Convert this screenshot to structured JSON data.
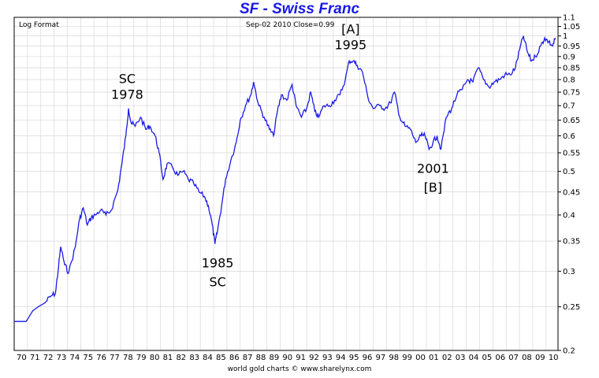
{
  "chart_data": {
    "type": "line",
    "title": "SF  -  Swiss Franc",
    "corner_label": "Log Format",
    "info_label": "Sep-02 2010  Close=0.99",
    "footer": "world gold charts © www.sharelynx.com",
    "scale": "log",
    "grid": true,
    "colors": {
      "line": "#1a1ae6",
      "title": "#1a1ae6",
      "grid": "#d8d8d8",
      "frame": "#000000"
    },
    "ylim": [
      0.2,
      1.1
    ],
    "yticks": [
      "1.1",
      "1.05",
      "1",
      "0.95",
      "0.9",
      "0.85",
      "0.8",
      "0.75",
      "0.7",
      "0.65",
      "0.6",
      "0.55",
      "0.5",
      "0.45",
      "0.4",
      "0.35",
      "0.3",
      "0.25",
      "0.2"
    ],
    "xticks": [
      "70",
      "71",
      "72",
      "73",
      "74",
      "75",
      "76",
      "77",
      "78",
      "79",
      "80",
      "81",
      "82",
      "83",
      "84",
      "85",
      "86",
      "87",
      "88",
      "89",
      "90",
      "91",
      "92",
      "93",
      "94",
      "95",
      "96",
      "97",
      "98",
      "99",
      "00",
      "01",
      "02",
      "03",
      "04",
      "05",
      "06",
      "07",
      "08",
      "09",
      "10"
    ],
    "xlim": [
      1970,
      2010.9
    ],
    "series": [
      {
        "x": [
          1970.0,
          1970.9,
          1971.4,
          1971.8,
          1972.3,
          1972.7,
          1973.1,
          1973.3,
          1973.5,
          1973.8,
          1974.1,
          1974.6,
          1974.9,
          1975.2,
          1975.5,
          1975.8,
          1976.1,
          1976.5,
          1976.9,
          1977.3,
          1977.8,
          1978.1,
          1978.4,
          1978.6,
          1978.8,
          1979.1,
          1979.5,
          1979.9,
          1980.2,
          1980.6,
          1980.9,
          1981.2,
          1981.5,
          1981.9,
          1982.3,
          1982.7,
          1983.1,
          1983.5,
          1983.9,
          1984.3,
          1984.6,
          1984.9,
          1985.1,
          1985.3,
          1985.6,
          1985.9,
          1986.3,
          1986.7,
          1987.0,
          1987.4,
          1987.8,
          1988.0,
          1988.4,
          1988.8,
          1989.2,
          1989.5,
          1989.8,
          1990.1,
          1990.5,
          1990.9,
          1991.2,
          1991.6,
          1992.0,
          1992.3,
          1992.6,
          1992.9,
          1993.3,
          1993.7,
          1994.1,
          1994.5,
          1994.9,
          1995.2,
          1995.5,
          1995.8,
          1996.2,
          1996.6,
          1997.0,
          1997.5,
          1997.9,
          1998.3,
          1998.6,
          1999.0,
          1999.4,
          1999.8,
          2000.2,
          2000.6,
          2000.9,
          2001.2,
          2001.5,
          2001.8,
          2002.1,
          2002.5,
          2002.9,
          2003.3,
          2003.7,
          2004.1,
          2004.5,
          2004.9,
          2005.3,
          2005.7,
          2006.1,
          2006.5,
          2006.9,
          2007.3,
          2007.7,
          2008.0,
          2008.3,
          2008.6,
          2008.9,
          2009.2,
          2009.6,
          2009.9,
          2010.2,
          2010.5,
          2010.7
        ],
        "y": [
          0.232,
          0.232,
          0.245,
          0.25,
          0.255,
          0.263,
          0.268,
          0.3,
          0.34,
          0.31,
          0.298,
          0.34,
          0.39,
          0.415,
          0.38,
          0.395,
          0.4,
          0.41,
          0.4,
          0.41,
          0.455,
          0.52,
          0.6,
          0.69,
          0.64,
          0.63,
          0.66,
          0.62,
          0.63,
          0.6,
          0.55,
          0.48,
          0.52,
          0.51,
          0.49,
          0.5,
          0.48,
          0.47,
          0.45,
          0.44,
          0.42,
          0.38,
          0.345,
          0.37,
          0.42,
          0.48,
          0.53,
          0.58,
          0.65,
          0.7,
          0.74,
          0.79,
          0.7,
          0.66,
          0.62,
          0.6,
          0.68,
          0.74,
          0.72,
          0.78,
          0.7,
          0.66,
          0.69,
          0.75,
          0.68,
          0.66,
          0.7,
          0.7,
          0.72,
          0.74,
          0.8,
          0.88,
          0.88,
          0.86,
          0.83,
          0.73,
          0.69,
          0.7,
          0.69,
          0.71,
          0.75,
          0.66,
          0.63,
          0.62,
          0.58,
          0.6,
          0.6,
          0.56,
          0.58,
          0.6,
          0.56,
          0.66,
          0.69,
          0.74,
          0.76,
          0.8,
          0.79,
          0.85,
          0.8,
          0.77,
          0.79,
          0.8,
          0.82,
          0.82,
          0.85,
          0.93,
          1.0,
          0.92,
          0.88,
          0.9,
          0.95,
          0.99,
          0.97,
          0.95,
          0.99
        ]
      }
    ],
    "annotations": [
      {
        "lines": [
          "SC",
          "1978"
        ],
        "x": 1978.5,
        "y": 0.69,
        "pos": "above"
      },
      {
        "lines": [
          "1985",
          "SC"
        ],
        "x": 1985.3,
        "y": 0.345,
        "pos": "below"
      },
      {
        "lines": [
          "[A]",
          "1995"
        ],
        "x": 1995.3,
        "y": 0.89,
        "pos": "above"
      },
      {
        "lines": [
          "2001",
          "[B]"
        ],
        "x": 2001.5,
        "y": 0.56,
        "pos": "below"
      }
    ]
  }
}
